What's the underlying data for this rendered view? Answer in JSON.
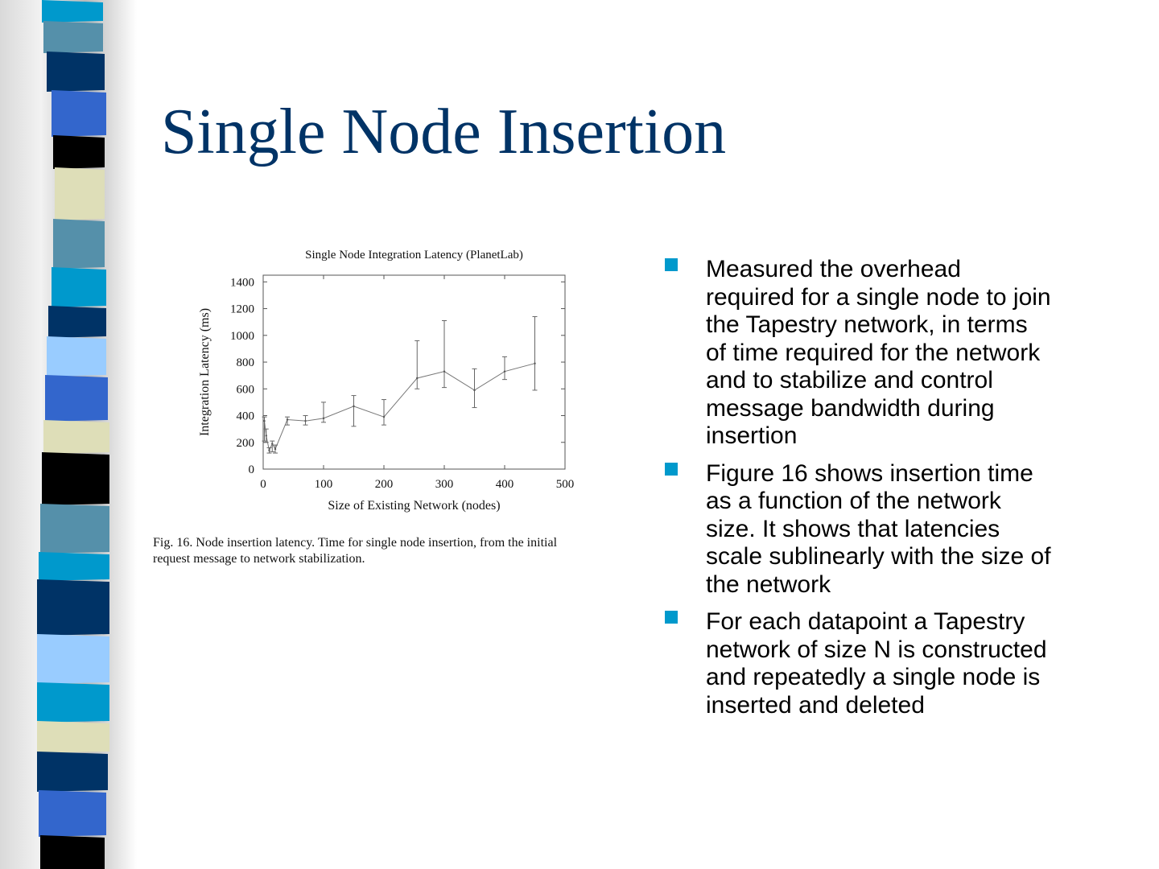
{
  "slide": {
    "title": "Single Node Insertion",
    "accent_color": "#003366",
    "bullet_color": "#0099cc"
  },
  "figure": {
    "caption_lines": [
      "Fig. 16.    Node insertion latency. Time for single node insertion, from the initial",
      "request message to network stabilization."
    ]
  },
  "bullets": [
    {
      "lines": [
        "Measured the overhead",
        "required for a single node to join",
        "the Tapestry network, in terms",
        "of time required for the network",
        "and to stabilize and control",
        "message bandwidth during",
        "insertion"
      ]
    },
    {
      "lines": [
        "Figure 16 shows insertion time",
        "as a function of the network",
        "size.  It shows that latencies",
        "scale sublinearly with the size of",
        "the network"
      ]
    },
    {
      "lines": [
        "For each datapoint a Tapestry",
        "network of size N  is constructed",
        "and repeatedly a single node is",
        "inserted and deleted"
      ]
    }
  ],
  "chart_data": {
    "type": "line",
    "title": "Single Node Integration Latency (PlanetLab)",
    "xlabel": "Size of Existing Network (nodes)",
    "ylabel": "Integration Latency (ms)",
    "xlim": [
      0,
      500
    ],
    "ylim": [
      0,
      1450
    ],
    "xticks": [
      0,
      100,
      200,
      300,
      400,
      500
    ],
    "yticks": [
      0,
      200,
      400,
      600,
      800,
      1000,
      1200,
      1400
    ],
    "grid": false,
    "series": [
      {
        "x": [
          2,
          5,
          10,
          15,
          20,
          40,
          70,
          100,
          150,
          200,
          255,
          300,
          350,
          400,
          450
        ],
        "y": [
          360,
          250,
          140,
          190,
          150,
          370,
          360,
          380,
          470,
          390,
          680,
          730,
          590,
          730,
          790
        ],
        "err_low": [
          210,
          200,
          120,
          130,
          120,
          330,
          330,
          350,
          320,
          330,
          600,
          610,
          460,
          670,
          590
        ],
        "err_high": [
          390,
          300,
          160,
          210,
          180,
          390,
          400,
          500,
          550,
          520,
          960,
          1110,
          750,
          840,
          1140
        ]
      }
    ]
  }
}
